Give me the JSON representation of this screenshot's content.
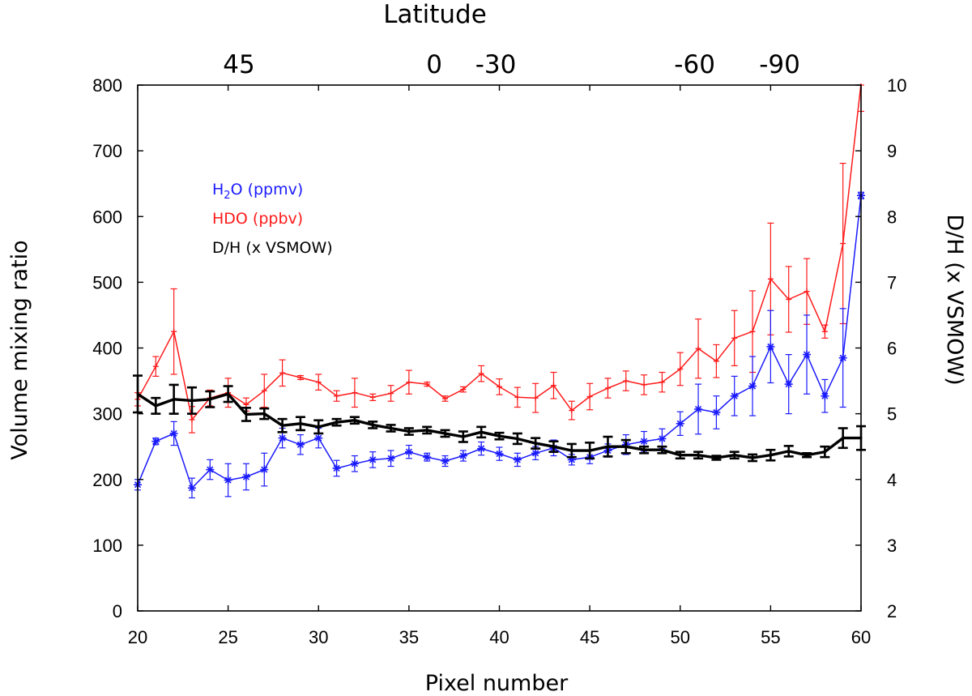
{
  "chart_data": {
    "type": "line",
    "xlabel": "Pixel number",
    "ylabel": "Volume mixing ratio",
    "y2label": "D/H (x VSMOW)",
    "top_axis_label": "Latitude",
    "xlim": [
      20,
      60
    ],
    "ylim": [
      0,
      800
    ],
    "y2lim": [
      2,
      10
    ],
    "xticks": [
      "20",
      "25",
      "30",
      "35",
      "40",
      "45",
      "50",
      "55",
      "60"
    ],
    "yticks": [
      "0",
      "100",
      "200",
      "300",
      "400",
      "500",
      "600",
      "700",
      "800"
    ],
    "y2ticks": [
      "2",
      "3",
      "4",
      "5",
      "6",
      "7",
      "8",
      "9",
      "10"
    ],
    "latitude_ticks": [
      {
        "label": "45",
        "pixel": 25.6
      },
      {
        "label": "0",
        "pixel": 36.4
      },
      {
        "label": "-30",
        "pixel": 39.8
      },
      {
        "label": "-60",
        "pixel": 50.8
      },
      {
        "label": "-90",
        "pixel": 55.5
      }
    ],
    "legend": [
      {
        "name": "H2O (ppmv)",
        "sub_pre": "H",
        "sub": "2",
        "sub_post": "O (ppmv)",
        "color": "#1a1aff"
      },
      {
        "name": "HDO (ppbv)",
        "color": "#ff1a1a"
      },
      {
        "name": "D/H (x VSMOW)",
        "color": "#000000"
      }
    ],
    "series": [
      {
        "name": "HDO (ppbv)",
        "axis": "left",
        "color": "#ff1a1a",
        "marker": "plus",
        "x": [
          20,
          21,
          22,
          23,
          24,
          25,
          26,
          27,
          28,
          29,
          30,
          31,
          32,
          33,
          34,
          35,
          36,
          37,
          38,
          39,
          40,
          41,
          42,
          43,
          44,
          45,
          46,
          47,
          48,
          49,
          50,
          51,
          52,
          53,
          54,
          55,
          56,
          57,
          58,
          59,
          60
        ],
        "values": [
          322,
          372,
          425,
          291,
          324,
          332,
          314,
          335,
          362,
          355,
          348,
          327,
          332,
          325,
          331,
          348,
          345,
          323,
          337,
          361,
          341,
          325,
          324,
          343,
          305,
          326,
          339,
          350,
          344,
          348,
          368,
          399,
          380,
          415,
          425,
          505,
          474,
          486,
          425,
          559,
          815
        ],
        "errors": [
          10,
          15,
          65,
          20,
          12,
          22,
          10,
          25,
          20,
          3,
          12,
          8,
          22,
          5,
          12,
          18,
          3,
          4,
          4,
          12,
          12,
          15,
          22,
          20,
          14,
          20,
          15,
          15,
          15,
          15,
          25,
          45,
          25,
          42,
          62,
          85,
          50,
          50,
          10,
          122,
          55
        ]
      },
      {
        "name": "H2O (ppmv)",
        "axis": "left",
        "color": "#1a1aff",
        "marker": "asterisk",
        "x": [
          20,
          21,
          22,
          23,
          24,
          25,
          26,
          27,
          28,
          29,
          30,
          31,
          32,
          33,
          34,
          35,
          36,
          37,
          38,
          39,
          40,
          41,
          42,
          43,
          44,
          45,
          46,
          47,
          48,
          49,
          50,
          51,
          52,
          53,
          54,
          55,
          56,
          57,
          58,
          59,
          60
        ],
        "values": [
          192,
          258,
          270,
          187,
          215,
          199,
          204,
          215,
          263,
          253,
          263,
          217,
          224,
          230,
          232,
          242,
          234,
          228,
          236,
          247,
          239,
          230,
          240,
          248,
          230,
          234,
          244,
          253,
          258,
          262,
          285,
          307,
          302,
          327,
          342,
          402,
          345,
          390,
          327,
          385,
          632
        ],
        "errors": [
          8,
          5,
          18,
          15,
          15,
          25,
          20,
          25,
          15,
          15,
          15,
          12,
          12,
          12,
          12,
          10,
          6,
          8,
          8,
          10,
          10,
          10,
          10,
          12,
          8,
          10,
          10,
          15,
          15,
          15,
          18,
          38,
          25,
          30,
          45,
          55,
          45,
          60,
          25,
          75,
          5
        ]
      },
      {
        "name": "D/H (x VSMOW)",
        "axis": "right",
        "color": "#000000",
        "marker": "cap",
        "x": [
          20,
          21,
          22,
          23,
          24,
          25,
          26,
          27,
          28,
          29,
          30,
          31,
          32,
          33,
          34,
          35,
          36,
          37,
          38,
          39,
          40,
          41,
          42,
          43,
          44,
          45,
          46,
          47,
          48,
          49,
          50,
          51,
          52,
          53,
          54,
          55,
          56,
          57,
          58,
          59,
          60
        ],
        "values": [
          5.3,
          5.12,
          5.22,
          5.2,
          5.22,
          5.3,
          4.99,
          5,
          4.82,
          4.85,
          4.8,
          4.87,
          4.9,
          4.83,
          4.78,
          4.73,
          4.75,
          4.7,
          4.65,
          4.72,
          4.66,
          4.62,
          4.55,
          4.5,
          4.44,
          4.44,
          4.5,
          4.5,
          4.45,
          4.45,
          4.37,
          4.37,
          4.33,
          4.37,
          4.33,
          4.37,
          4.43,
          4.37,
          4.42,
          4.63,
          4.63
        ],
        "errors": [
          0.28,
          0.12,
          0.22,
          0.2,
          0.12,
          0.12,
          0.1,
          0.08,
          0.1,
          0.1,
          0.1,
          0.05,
          0.05,
          0.05,
          0.05,
          0.05,
          0.05,
          0.05,
          0.08,
          0.08,
          0.05,
          0.08,
          0.08,
          0.08,
          0.1,
          0.12,
          0.15,
          0.1,
          0.05,
          0.05,
          0.05,
          0.05,
          0.03,
          0.05,
          0.05,
          0.08,
          0.08,
          0.03,
          0.08,
          0.15,
          0.18
        ]
      }
    ]
  }
}
